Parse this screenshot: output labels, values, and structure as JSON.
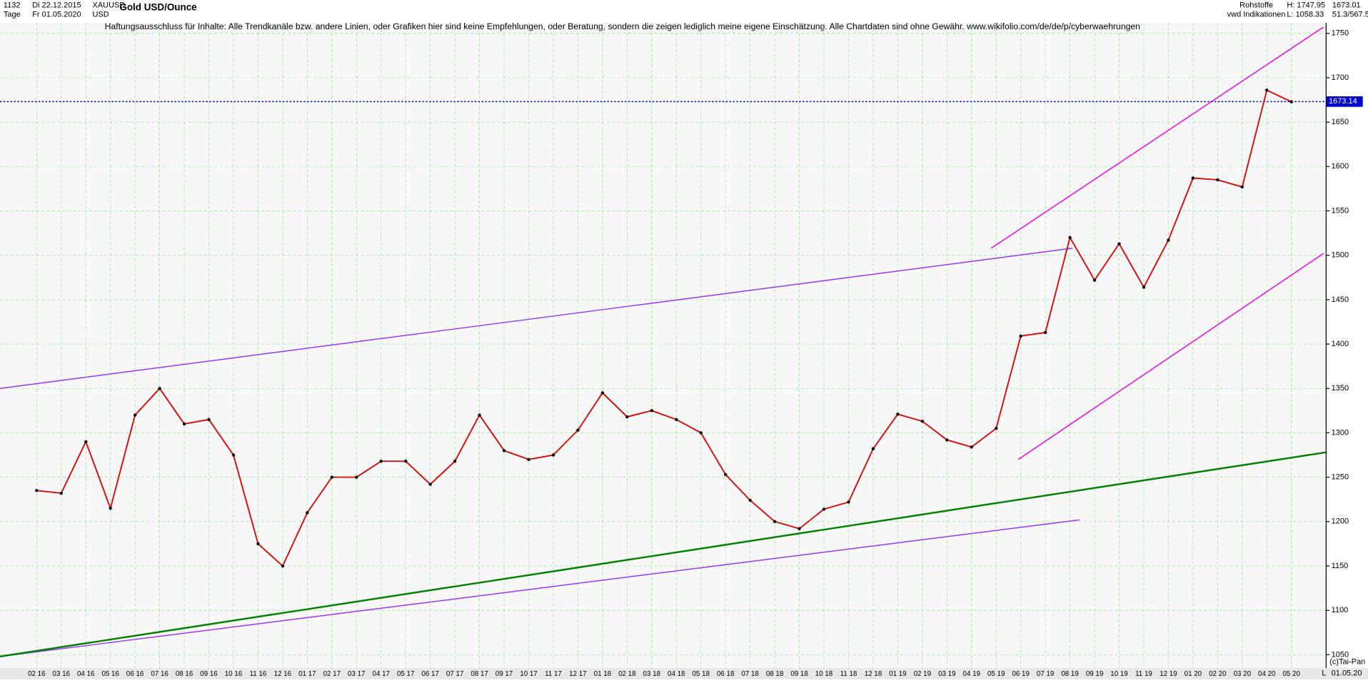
{
  "header": {
    "id": "1132",
    "period": "Tage",
    "start": "Di 22.12.2015",
    "end": "Fr 01.05.2020",
    "symbol": "XAUUSD",
    "currency": "USD",
    "group": "Rohstoffe",
    "source": "vwd Indikationen",
    "high": "H: 1747.95",
    "low": "L: 1058.33",
    "last": "1673.01",
    "ratio": "51.3/567.5"
  },
  "footer": {
    "copyright": "(c)Tai-Pan",
    "date": "01.05.20",
    "mode": "L"
  },
  "chart_data": {
    "type": "line",
    "title": "Gold USD/Ounce",
    "subtitle": "Haftungsausschluss für Inhalte: Alle Trendkanäle bzw. andere Linien, oder Grafiken hier sind keine Empfehlungen, oder Beratung, sondern die zeigen lediglich meine eigene Einschätzung. Alle Chartdaten sind ohne Gewähr.  www.wikifolio.com/de/de/p/cyberwaehrungen",
    "categories": [
      "02 16",
      "03 16",
      "04 16",
      "05 16",
      "06 16",
      "07 16",
      "08 16",
      "09 16",
      "10 16",
      "11 16",
      "12 16",
      "01 17",
      "02 17",
      "03 17",
      "04 17",
      "05 17",
      "06 17",
      "07 17",
      "08 17",
      "09 17",
      "10 17",
      "11 17",
      "12 17",
      "01 18",
      "02 18",
      "03 18",
      "04 18",
      "05 18",
      "06 18",
      "07 18",
      "08 18",
      "09 18",
      "10 18",
      "11 18",
      "12 18",
      "01 19",
      "02 19",
      "03 19",
      "04 19",
      "05 19",
      "06 19",
      "07 19",
      "08 19",
      "09 19",
      "10 19",
      "11 19",
      "12 19",
      "01 20",
      "02 20",
      "03 20",
      "04 20",
      "05 20"
    ],
    "series": [
      {
        "name": "Gold",
        "color": "#e00000",
        "values": [
          1235,
          1232,
          1290,
          1215,
          1320,
          1350,
          1310,
          1315,
          1275,
          1175,
          1150,
          1210,
          1250,
          1250,
          1268,
          1268,
          1242,
          1268,
          1320,
          1280,
          1270,
          1275,
          1303,
          1345,
          1318,
          1325,
          1315,
          1300,
          1253,
          1224,
          1200,
          1192,
          1214,
          1222,
          1282,
          1321,
          1313,
          1292,
          1284,
          1305,
          1409,
          1413,
          1520,
          1472,
          1513,
          1464,
          1517,
          1587,
          1585,
          1577,
          1686,
          1673
        ]
      }
    ],
    "trendlines": [
      {
        "x": [
          -1.49,
          42.1
        ],
        "y": [
          1350,
          1508
        ],
        "color": "#9933ff"
      },
      {
        "x": [
          -1.49,
          42.4
        ],
        "y": [
          1048,
          1202
        ],
        "color": "#9933ff"
      },
      {
        "x": [
          -1.49,
          52.4
        ],
        "y": [
          1048,
          1278
        ],
        "color": "#008000"
      },
      {
        "x": [
          38.8,
          52.3
        ],
        "y": [
          1508,
          1757
        ],
        "color": "#ee00ee"
      },
      {
        "x": [
          39.9,
          52.3
        ],
        "y": [
          1270,
          1502
        ],
        "color": "#ee00ee"
      }
    ],
    "hline": {
      "value": 1673.14,
      "color": "#0000cc"
    },
    "ylim": [
      1035,
      1762
    ],
    "yticks": [
      1050,
      1100,
      1150,
      1200,
      1250,
      1300,
      1350,
      1400,
      1450,
      1500,
      1550,
      1600,
      1650,
      1700,
      1750
    ],
    "grid": true
  }
}
